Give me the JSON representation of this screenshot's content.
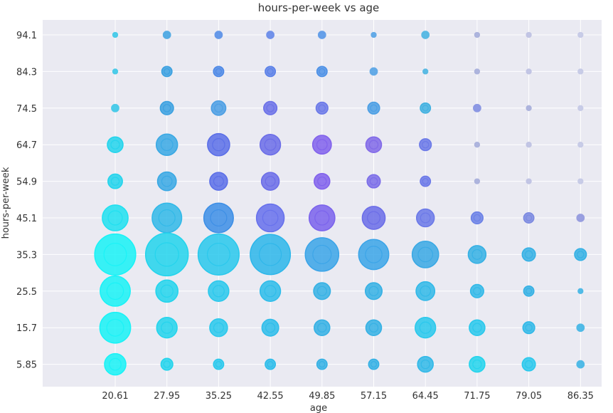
{
  "chart_data": {
    "type": "scatter",
    "title": "hours-per-week vs age",
    "xlabel": "age",
    "ylabel": "hours-per-week",
    "x_ticks": [
      "20.61",
      "27.95",
      "35.25",
      "42.55",
      "49.85",
      "57.15",
      "64.45",
      "71.75",
      "79.05",
      "86.35"
    ],
    "y_ticks": [
      "5.85",
      "15.7",
      "25.5",
      "35.3",
      "45.1",
      "54.9",
      "64.7",
      "74.5",
      "84.3",
      "94.1"
    ],
    "grid": true,
    "legend": "none",
    "size_scale": "count of records per cell (relative)",
    "cells": [
      {
        "x": "20.61",
        "y": "94.1",
        "size": 1,
        "color": "#2ec4e6"
      },
      {
        "x": "27.95",
        "y": "94.1",
        "size": 2,
        "color": "#3aa0e0"
      },
      {
        "x": "35.25",
        "y": "94.1",
        "size": 2,
        "color": "#4c88e6"
      },
      {
        "x": "42.55",
        "y": "94.1",
        "size": 2,
        "color": "#5a80e8"
      },
      {
        "x": "49.85",
        "y": "94.1",
        "size": 2,
        "color": "#4c90e6"
      },
      {
        "x": "57.15",
        "y": "94.1",
        "size": 1,
        "color": "#4a9ee4"
      },
      {
        "x": "64.45",
        "y": "94.1",
        "size": 2,
        "color": "#40b0e0"
      },
      {
        "x": "71.75",
        "y": "94.1",
        "size": 1,
        "color": "#a0a8d8"
      },
      {
        "x": "79.05",
        "y": "94.1",
        "size": 1,
        "color": "#b8bce0"
      },
      {
        "x": "86.35",
        "y": "94.1",
        "size": 1,
        "color": "#c0c4e4"
      },
      {
        "x": "20.61",
        "y": "84.3",
        "size": 1,
        "color": "#2ec4e6"
      },
      {
        "x": "27.95",
        "y": "84.3",
        "size": 3,
        "color": "#3aa0e0"
      },
      {
        "x": "35.25",
        "y": "84.3",
        "size": 3,
        "color": "#4c88e6"
      },
      {
        "x": "42.55",
        "y": "84.3",
        "size": 3,
        "color": "#5a80e8"
      },
      {
        "x": "49.85",
        "y": "84.3",
        "size": 3,
        "color": "#4c90e6"
      },
      {
        "x": "57.15",
        "y": "84.3",
        "size": 2,
        "color": "#4a9ee4"
      },
      {
        "x": "64.45",
        "y": "84.3",
        "size": 1,
        "color": "#40b0e0"
      },
      {
        "x": "71.75",
        "y": "84.3",
        "size": 1,
        "color": "#a0a8d8"
      },
      {
        "x": "79.05",
        "y": "84.3",
        "size": 1,
        "color": "#b8bce0"
      },
      {
        "x": "86.35",
        "y": "84.3",
        "size": 1,
        "color": "#c0c4e4"
      },
      {
        "x": "20.61",
        "y": "74.5",
        "size": 2,
        "color": "#2ec4e6"
      },
      {
        "x": "27.95",
        "y": "74.5",
        "size": 5,
        "color": "#3aa0e0"
      },
      {
        "x": "35.25",
        "y": "74.5",
        "size": 6,
        "color": "#4a9ee4"
      },
      {
        "x": "42.55",
        "y": "74.5",
        "size": 5,
        "color": "#6a70e8"
      },
      {
        "x": "49.85",
        "y": "74.5",
        "size": 4,
        "color": "#6a78e8"
      },
      {
        "x": "57.15",
        "y": "74.5",
        "size": 4,
        "color": "#4a9ee4"
      },
      {
        "x": "64.45",
        "y": "74.5",
        "size": 3,
        "color": "#40b0e0"
      },
      {
        "x": "71.75",
        "y": "74.5",
        "size": 2,
        "color": "#7a88e0"
      },
      {
        "x": "79.05",
        "y": "74.5",
        "size": 1,
        "color": "#a0a8d8"
      },
      {
        "x": "86.35",
        "y": "74.5",
        "size": 1,
        "color": "#c0c4e4"
      },
      {
        "x": "20.61",
        "y": "64.7",
        "size": 7,
        "color": "#22d4ec"
      },
      {
        "x": "27.95",
        "y": "64.7",
        "size": 13,
        "color": "#38a8e4"
      },
      {
        "x": "35.25",
        "y": "64.7",
        "size": 14,
        "color": "#5a6ee8"
      },
      {
        "x": "42.55",
        "y": "64.7",
        "size": 12,
        "color": "#6a6ce8"
      },
      {
        "x": "49.85",
        "y": "64.7",
        "size": 10,
        "color": "#8060ec"
      },
      {
        "x": "57.15",
        "y": "64.7",
        "size": 7,
        "color": "#8068e8"
      },
      {
        "x": "64.45",
        "y": "64.7",
        "size": 4,
        "color": "#6a78e8"
      },
      {
        "x": "71.75",
        "y": "64.7",
        "size": 1,
        "color": "#a0a8d8"
      },
      {
        "x": "79.05",
        "y": "64.7",
        "size": 1,
        "color": "#b8bce0"
      },
      {
        "x": "86.35",
        "y": "64.7",
        "size": 1,
        "color": "#c0c4e4"
      },
      {
        "x": "20.61",
        "y": "54.9",
        "size": 6,
        "color": "#22d4ec"
      },
      {
        "x": "27.95",
        "y": "54.9",
        "size": 10,
        "color": "#38a8e4"
      },
      {
        "x": "35.25",
        "y": "54.9",
        "size": 9,
        "color": "#5a6ee8"
      },
      {
        "x": "42.55",
        "y": "54.9",
        "size": 9,
        "color": "#6a6ce8"
      },
      {
        "x": "49.85",
        "y": "54.9",
        "size": 7,
        "color": "#8060ec"
      },
      {
        "x": "57.15",
        "y": "54.9",
        "size": 5,
        "color": "#7a6ce8"
      },
      {
        "x": "64.45",
        "y": "54.9",
        "size": 3,
        "color": "#6a78e8"
      },
      {
        "x": "71.75",
        "y": "54.9",
        "size": 1,
        "color": "#a0a8d8"
      },
      {
        "x": "79.05",
        "y": "54.9",
        "size": 1,
        "color": "#b8bce0"
      },
      {
        "x": "86.35",
        "y": "54.9",
        "size": 1,
        "color": "#c0c4e4"
      },
      {
        "x": "20.61",
        "y": "45.1",
        "size": 19,
        "color": "#1ee0f0"
      },
      {
        "x": "27.95",
        "y": "45.1",
        "size": 25,
        "color": "#30b8e8"
      },
      {
        "x": "35.25",
        "y": "45.1",
        "size": 25,
        "color": "#3c8ee6"
      },
      {
        "x": "42.55",
        "y": "45.1",
        "size": 22,
        "color": "#6670ec"
      },
      {
        "x": "49.85",
        "y": "45.1",
        "size": 19,
        "color": "#7a62ec"
      },
      {
        "x": "57.15",
        "y": "45.1",
        "size": 15,
        "color": "#6a6ce8"
      },
      {
        "x": "64.45",
        "y": "45.1",
        "size": 9,
        "color": "#6a78e8"
      },
      {
        "x": "71.75",
        "y": "45.1",
        "size": 4,
        "color": "#6a80e6"
      },
      {
        "x": "79.05",
        "y": "45.1",
        "size": 3,
        "color": "#7a88e0"
      },
      {
        "x": "86.35",
        "y": "45.1",
        "size": 2,
        "color": "#8a90dc"
      },
      {
        "x": "20.61",
        "y": "35.3",
        "size": 48,
        "color": "#18f2f6"
      },
      {
        "x": "27.95",
        "y": "35.3",
        "size": 52,
        "color": "#22d4ec"
      },
      {
        "x": "35.25",
        "y": "35.3",
        "size": 48,
        "color": "#28c8ec"
      },
      {
        "x": "42.55",
        "y": "35.3",
        "size": 46,
        "color": "#2cb6ea"
      },
      {
        "x": "49.85",
        "y": "35.3",
        "size": 32,
        "color": "#3aa4e8"
      },
      {
        "x": "57.15",
        "y": "35.3",
        "size": 26,
        "color": "#3aa4e8"
      },
      {
        "x": "64.45",
        "y": "35.3",
        "size": 20,
        "color": "#38a8e4"
      },
      {
        "x": "71.75",
        "y": "35.3",
        "size": 9,
        "color": "#34b0e4"
      },
      {
        "x": "79.05",
        "y": "35.3",
        "size": 5,
        "color": "#34b0e4"
      },
      {
        "x": "86.35",
        "y": "35.3",
        "size": 4,
        "color": "#34b0e4"
      },
      {
        "x": "20.61",
        "y": "25.5",
        "size": 26,
        "color": "#18f2f6"
      },
      {
        "x": "27.95",
        "y": "25.5",
        "size": 14,
        "color": "#22d4ec"
      },
      {
        "x": "35.25",
        "y": "25.5",
        "size": 12,
        "color": "#28c8ec"
      },
      {
        "x": "42.55",
        "y": "25.5",
        "size": 12,
        "color": "#2cbcea"
      },
      {
        "x": "49.85",
        "y": "25.5",
        "size": 8,
        "color": "#34b0e4"
      },
      {
        "x": "57.15",
        "y": "25.5",
        "size": 8,
        "color": "#34b0e4"
      },
      {
        "x": "64.45",
        "y": "25.5",
        "size": 10,
        "color": "#30b8e8"
      },
      {
        "x": "71.75",
        "y": "25.5",
        "size": 5,
        "color": "#30b8e8"
      },
      {
        "x": "79.05",
        "y": "25.5",
        "size": 3,
        "color": "#34b0e4"
      },
      {
        "x": "86.35",
        "y": "25.5",
        "size": 1,
        "color": "#34b0e4"
      },
      {
        "x": "20.61",
        "y": "15.7",
        "size": 27,
        "color": "#18f2f6"
      },
      {
        "x": "27.95",
        "y": "15.7",
        "size": 12,
        "color": "#22d4ec"
      },
      {
        "x": "35.25",
        "y": "15.7",
        "size": 9,
        "color": "#28c8ec"
      },
      {
        "x": "42.55",
        "y": "15.7",
        "size": 8,
        "color": "#2cbcea"
      },
      {
        "x": "49.85",
        "y": "15.7",
        "size": 7,
        "color": "#34b0e4"
      },
      {
        "x": "57.15",
        "y": "15.7",
        "size": 7,
        "color": "#34b0e4"
      },
      {
        "x": "64.45",
        "y": "15.7",
        "size": 12,
        "color": "#28c8ec"
      },
      {
        "x": "71.75",
        "y": "15.7",
        "size": 7,
        "color": "#28c8ec"
      },
      {
        "x": "79.05",
        "y": "15.7",
        "size": 4,
        "color": "#30b8e8"
      },
      {
        "x": "86.35",
        "y": "15.7",
        "size": 2,
        "color": "#34b0e4"
      },
      {
        "x": "20.61",
        "y": "5.85",
        "size": 13,
        "color": "#18f2f6"
      },
      {
        "x": "27.95",
        "y": "5.85",
        "size": 4,
        "color": "#22d4ec"
      },
      {
        "x": "35.25",
        "y": "5.85",
        "size": 3,
        "color": "#28c8ec"
      },
      {
        "x": "42.55",
        "y": "5.85",
        "size": 3,
        "color": "#2cbcea"
      },
      {
        "x": "49.85",
        "y": "5.85",
        "size": 3,
        "color": "#34b0e4"
      },
      {
        "x": "57.15",
        "y": "5.85",
        "size": 3,
        "color": "#34b0e4"
      },
      {
        "x": "64.45",
        "y": "5.85",
        "size": 7,
        "color": "#30b8e8"
      },
      {
        "x": "71.75",
        "y": "5.85",
        "size": 7,
        "color": "#22d4ec"
      },
      {
        "x": "79.05",
        "y": "5.85",
        "size": 5,
        "color": "#28c8ec"
      },
      {
        "x": "86.35",
        "y": "5.85",
        "size": 2,
        "color": "#34b0e4"
      }
    ]
  }
}
